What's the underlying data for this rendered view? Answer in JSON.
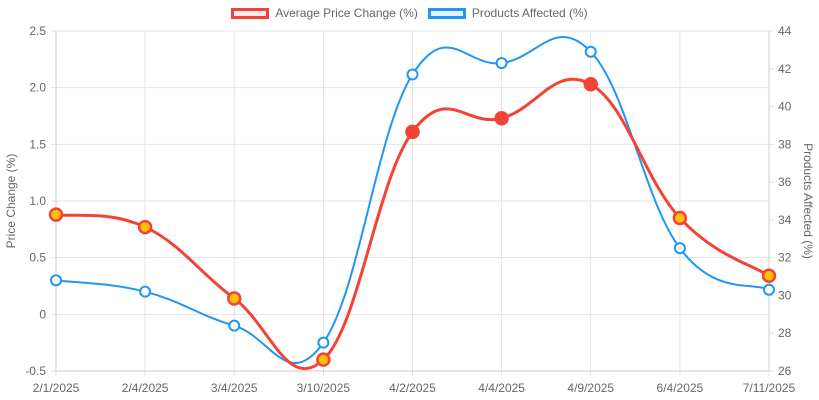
{
  "chart_data": {
    "type": "line",
    "categories": [
      "2/1/2025",
      "2/4/2025",
      "3/4/2025",
      "3/10/2025",
      "4/2/2025",
      "4/4/2025",
      "4/9/2025",
      "6/4/2025",
      "7/11/2025"
    ],
    "series": [
      {
        "name": "Average Price Change (%)",
        "axis": "left",
        "color": "#f44336",
        "fill": "#fdeaea",
        "values": [
          0.88,
          0.77,
          0.14,
          -0.4,
          1.61,
          1.73,
          2.03,
          0.85,
          0.34
        ],
        "point_colors": [
          "#ffc107",
          "#ffc107",
          "#ffc107",
          "#ffc107",
          "#f44336",
          "#f44336",
          "#f44336",
          "#ffc107",
          "#ffc107"
        ]
      },
      {
        "name": "Products Affected (%)",
        "axis": "right",
        "color": "#2196f3",
        "fill": "#e3f2fd",
        "values": [
          30.8,
          30.2,
          28.4,
          27.5,
          41.7,
          42.3,
          42.9,
          32.5,
          30.3
        ]
      }
    ],
    "ylabel": "Price Change (%)",
    "y2label": "Products Affected (%)",
    "ylim": [
      -0.5,
      2.5
    ],
    "yticks": [
      "-0.5",
      "0",
      "0.5",
      "1.0",
      "1.5",
      "2.0",
      "2.5"
    ],
    "y2lim": [
      26,
      44
    ],
    "y2ticks": [
      "26",
      "28",
      "30",
      "32",
      "34",
      "36",
      "38",
      "40",
      "42",
      "44"
    ],
    "grid": true,
    "legend": "top"
  }
}
